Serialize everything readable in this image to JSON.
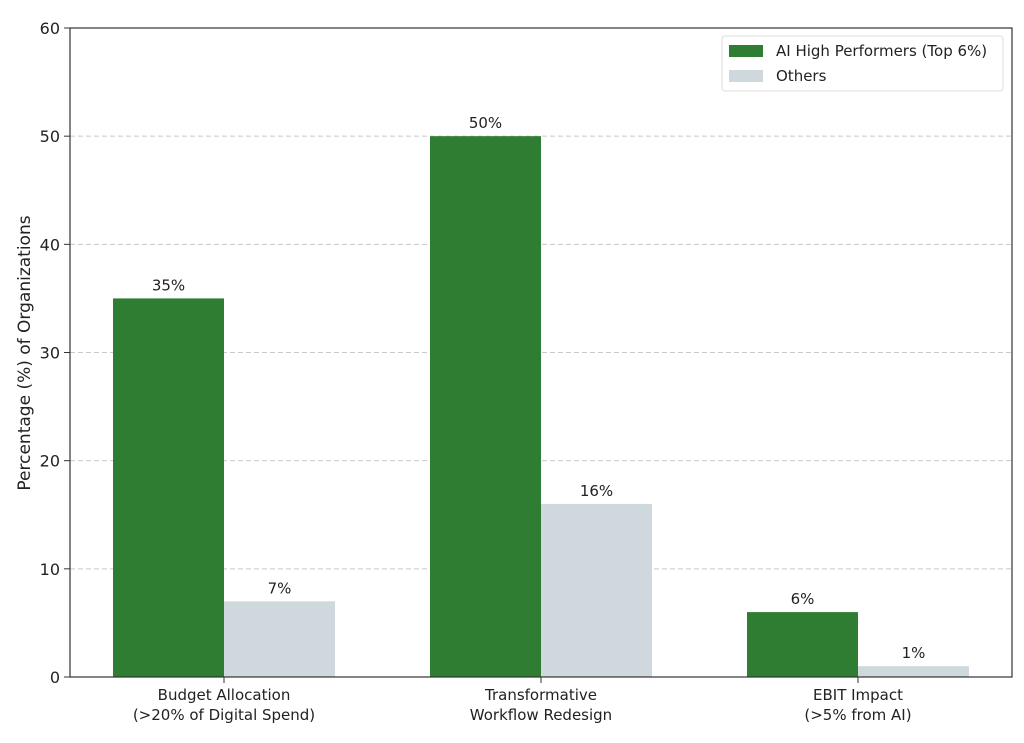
{
  "chart_data": {
    "type": "bar",
    "title": "",
    "xlabel": "",
    "ylabel": "Percentage (%) of Organizations",
    "ylim": [
      0,
      60
    ],
    "yticks": [
      0,
      10,
      20,
      30,
      40,
      50,
      60
    ],
    "grid": "horizontal dashed",
    "legend_position": "top-right",
    "categories": [
      [
        "Budget Allocation",
        "(>20% of Digital Spend)"
      ],
      [
        "Transformative",
        "Workflow Redesign"
      ],
      [
        "EBIT Impact",
        "(>5% from AI)"
      ]
    ],
    "series": [
      {
        "name": "AI High Performers (Top 6%)",
        "color": "#2e7d32",
        "values": [
          35,
          50,
          6
        ],
        "labels": [
          "35%",
          "50%",
          "6%"
        ]
      },
      {
        "name": "Others",
        "color": "#cfd8dc",
        "values": [
          7,
          16,
          1
        ],
        "labels": [
          "7%",
          "16%",
          "1%"
        ]
      }
    ]
  }
}
